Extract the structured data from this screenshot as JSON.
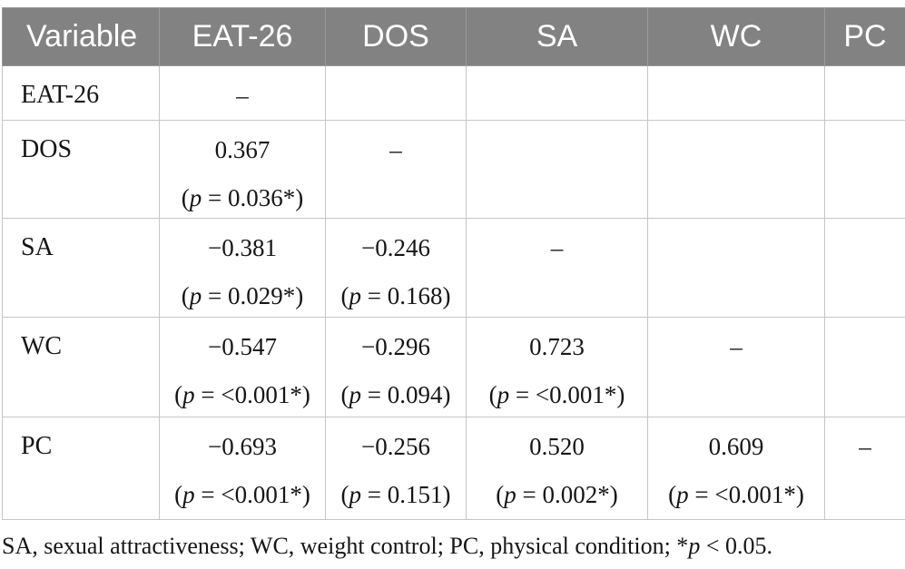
{
  "table": {
    "columns": [
      "Variable",
      "EAT-26",
      "DOS",
      "SA",
      "WC",
      "PC"
    ],
    "dash": "–",
    "p_open": "(",
    "p_symbol": "p",
    "p_equals": "=",
    "p_close": ")",
    "rows": [
      {
        "label": "EAT-26",
        "cells": [
          "dash",
          "",
          "",
          "",
          ""
        ]
      },
      {
        "label": "DOS",
        "cells": [
          {
            "r": "0.367",
            "p": "0.036*"
          },
          "dash",
          "",
          "",
          ""
        ]
      },
      {
        "label": "SA",
        "cells": [
          {
            "r": "−0.381",
            "p": "0.029*"
          },
          {
            "r": "−0.246",
            "p": "0.168"
          },
          "dash",
          "",
          ""
        ]
      },
      {
        "label": "WC",
        "cells": [
          {
            "r": "−0.547",
            "p": "<0.001*"
          },
          {
            "r": "−0.296",
            "p": "0.094"
          },
          {
            "r": "0.723",
            "p": "<0.001*"
          },
          "dash",
          ""
        ]
      },
      {
        "label": "PC",
        "cells": [
          {
            "r": "−0.693",
            "p": "<0.001*"
          },
          {
            "r": "−0.256",
            "p": "0.151"
          },
          {
            "r": "0.520",
            "p": "0.002*"
          },
          {
            "r": "0.609",
            "p": "<0.001*"
          },
          "dash"
        ]
      }
    ]
  },
  "footnote": {
    "prefix": "SA, sexual attractiveness; WC, weight control; PC, physical condition; *",
    "p_symbol": "p",
    "suffix": " < 0.05."
  },
  "colors": {
    "header_bg": "#828282",
    "header_text": "#ffffff",
    "border": "#c6c6c6",
    "body_text": "#161616"
  }
}
